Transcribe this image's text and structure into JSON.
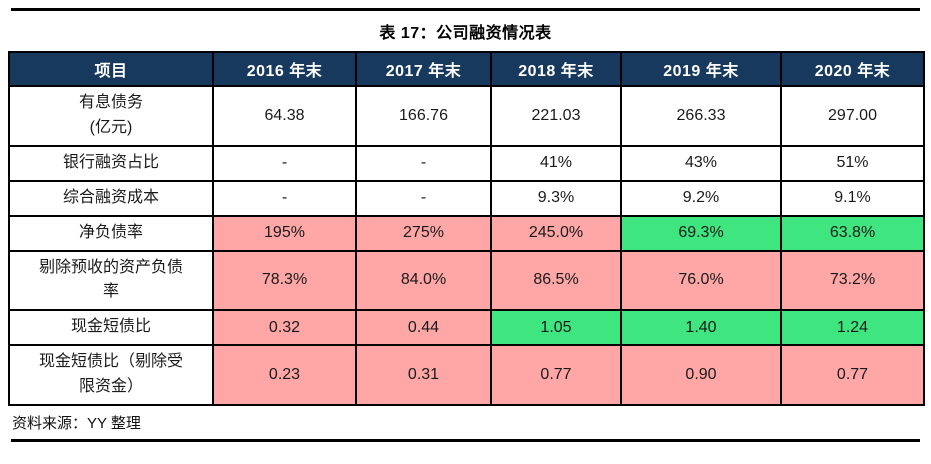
{
  "page": {
    "title": "表 17：公司融资情况表",
    "source": "资料来源：YY 整理"
  },
  "colors": {
    "header_bg": "#16395D",
    "header_text": "#FFFFFF",
    "highlight_red": "#FFA6A6",
    "highlight_green": "#3FE57E",
    "cell_bg": "#FFFFFF",
    "border": "#000000",
    "rule": "#000000"
  },
  "chart_data": {
    "type": "table",
    "title": "表 17：公司融资情况表",
    "columns": [
      "项目",
      "2016 年末",
      "2017 年末",
      "2018 年末",
      "2019 年末",
      "2020 年末"
    ],
    "rows": [
      {
        "label": "有息债务\n(亿元)",
        "values": [
          "64.38",
          "166.76",
          "221.03",
          "266.33",
          "297.00"
        ],
        "highlights": [
          "none",
          "none",
          "none",
          "none",
          "none"
        ]
      },
      {
        "label": "银行融资占比",
        "values": [
          "-",
          "-",
          "41%",
          "43%",
          "51%"
        ],
        "highlights": [
          "none",
          "none",
          "none",
          "none",
          "none"
        ]
      },
      {
        "label": "综合融资成本",
        "values": [
          "-",
          "-",
          "9.3%",
          "9.2%",
          "9.1%"
        ],
        "highlights": [
          "none",
          "none",
          "none",
          "none",
          "none"
        ]
      },
      {
        "label": "净负债率",
        "values": [
          "195%",
          "275%",
          "245.0%",
          "69.3%",
          "63.8%"
        ],
        "highlights": [
          "red",
          "red",
          "red",
          "green",
          "green"
        ]
      },
      {
        "label": "剔除预收的资产负债\n率",
        "values": [
          "78.3%",
          "84.0%",
          "86.5%",
          "76.0%",
          "73.2%"
        ],
        "highlights": [
          "red",
          "red",
          "red",
          "red",
          "red"
        ]
      },
      {
        "label": "现金短债比",
        "values": [
          "0.32",
          "0.44",
          "1.05",
          "1.40",
          "1.24"
        ],
        "highlights": [
          "red",
          "red",
          "green",
          "green",
          "green"
        ]
      },
      {
        "label": "现金短债比（剔除受\n限资金）",
        "values": [
          "0.23",
          "0.31",
          "0.77",
          "0.90",
          "0.77"
        ],
        "highlights": [
          "red",
          "red",
          "red",
          "red",
          "red"
        ]
      }
    ],
    "source": "资料来源：YY 整理"
  }
}
